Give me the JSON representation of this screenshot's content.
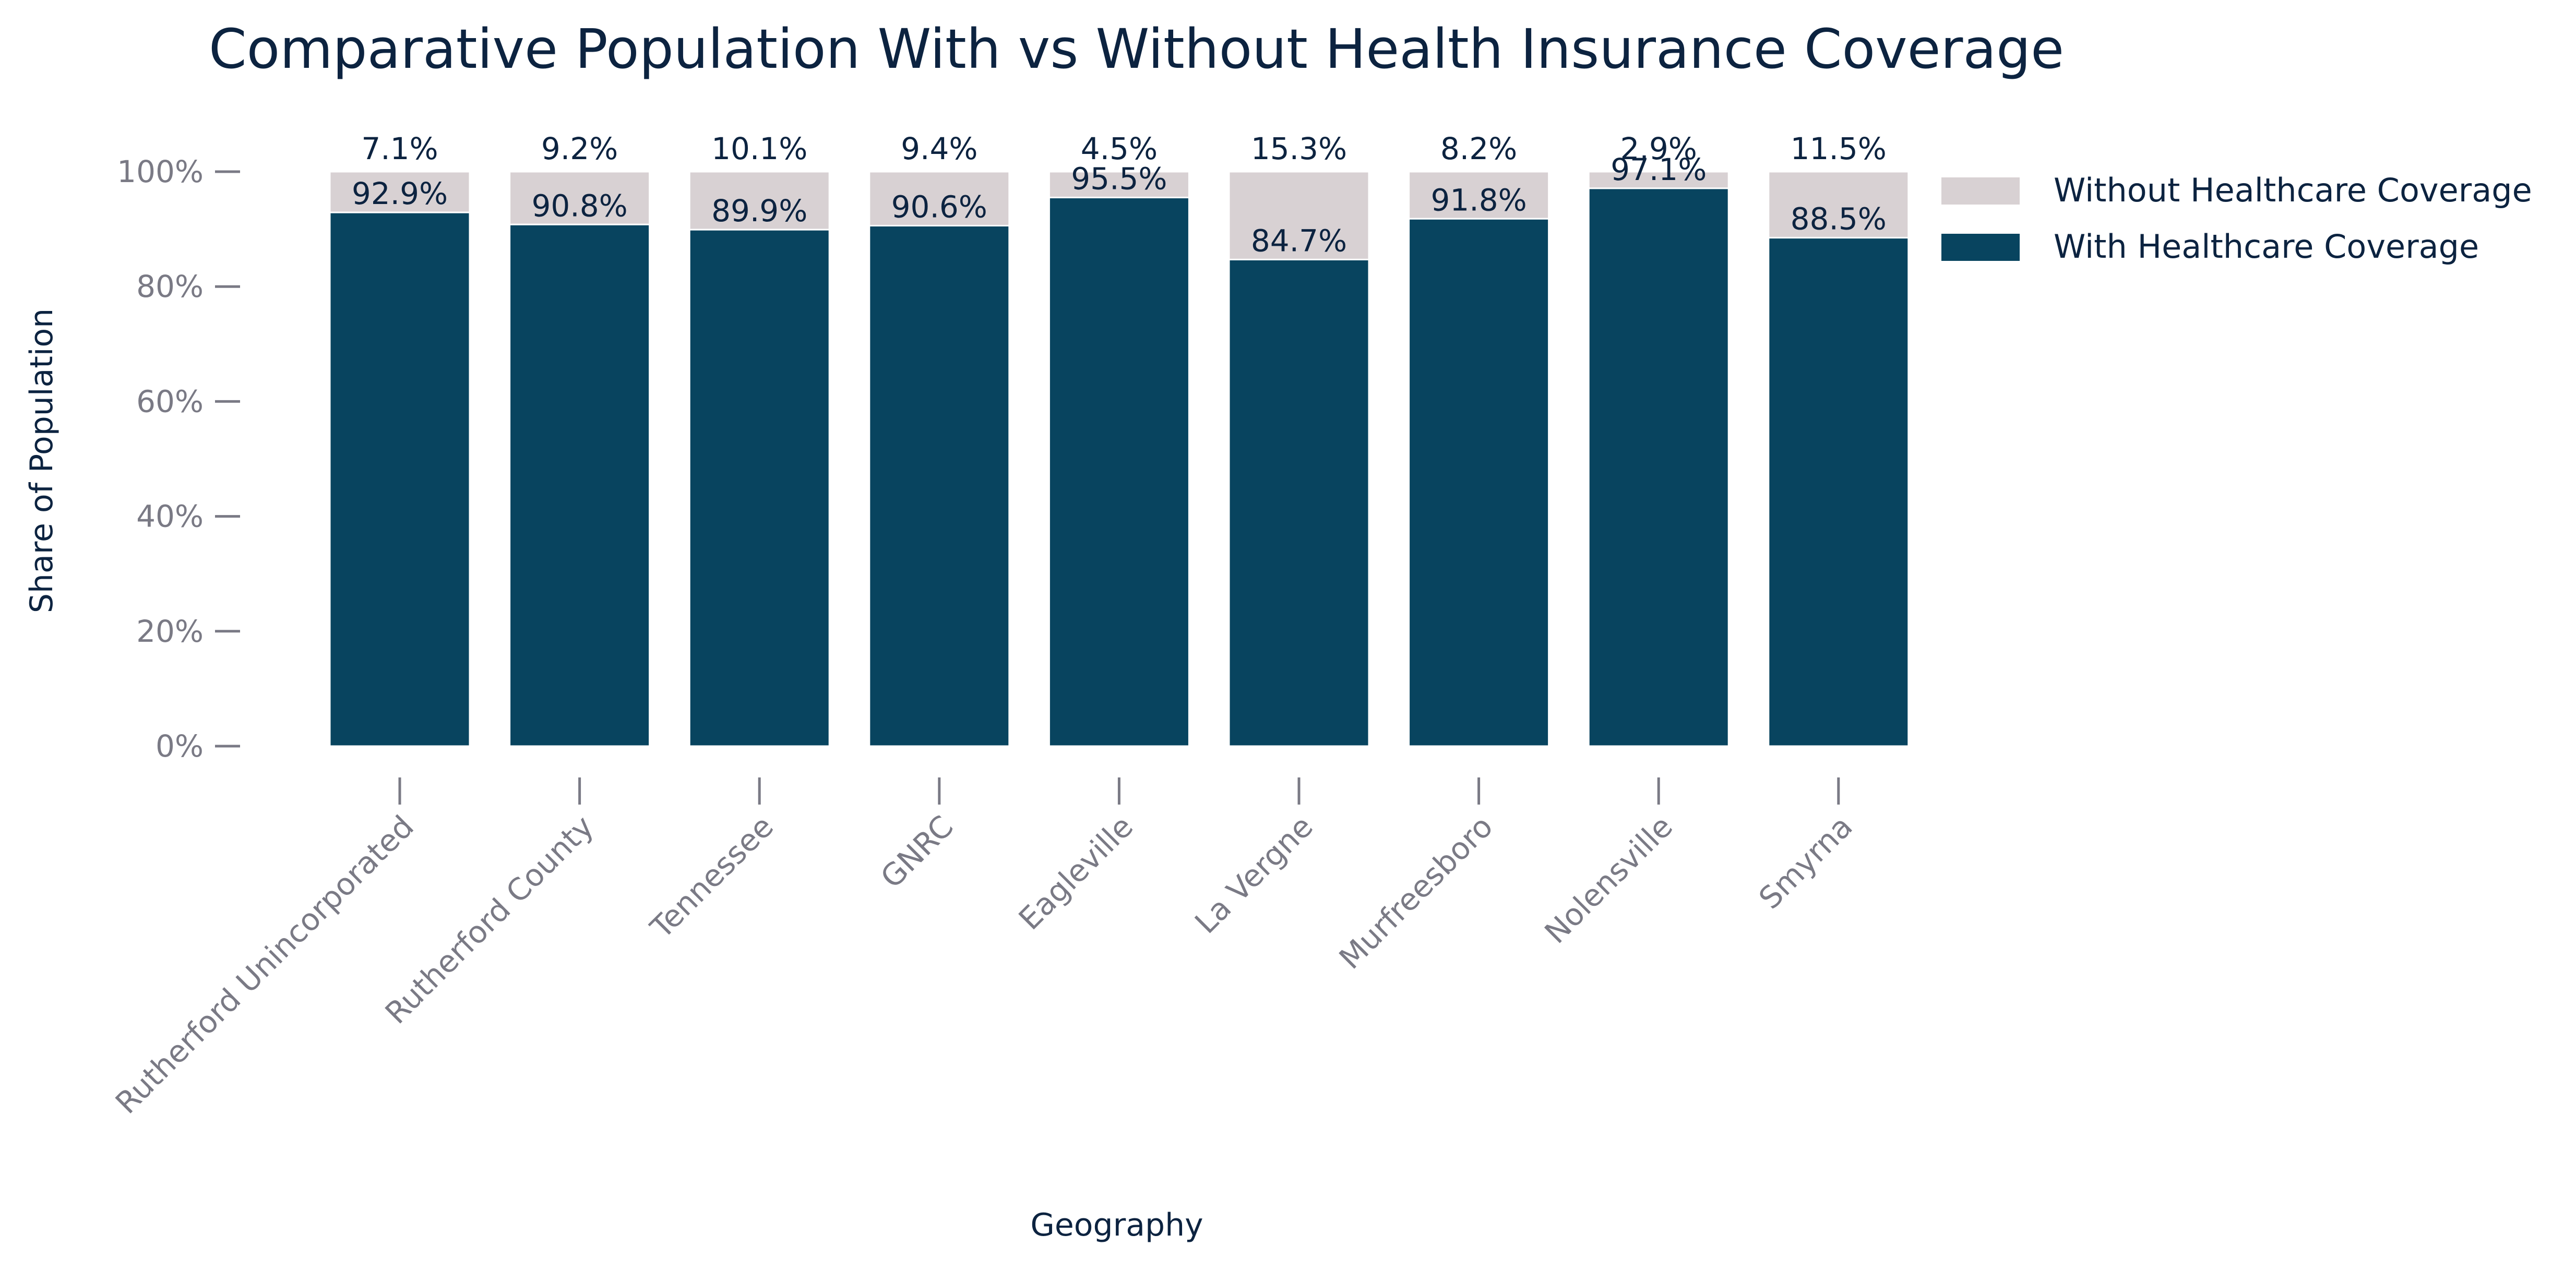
{
  "chart_data": {
    "type": "bar",
    "stacked": true,
    "title": "Comparative Population With vs Without Health Insurance Coverage",
    "xlabel": "Geography",
    "ylabel": "Share of Population",
    "ylim": [
      0,
      100
    ],
    "y_ticks": [
      "0%",
      "20%",
      "40%",
      "60%",
      "80%",
      "100%"
    ],
    "y_tick_values": [
      0,
      20,
      40,
      60,
      80,
      100
    ],
    "grid": false,
    "legend_position": "top-right",
    "categories": [
      "Rutherford Unincorporated",
      "Rutherford County",
      "Tennessee",
      "GNRC",
      "Eagleville",
      "La Vergne",
      "Murfreesboro",
      "Nolensville",
      "Smyrna"
    ],
    "series": [
      {
        "name": "With Healthcare Coverage",
        "color": "#08445f",
        "values": [
          92.9,
          90.8,
          89.9,
          90.6,
          95.5,
          84.7,
          91.8,
          97.1,
          88.5
        ],
        "labels": [
          "92.9%",
          "90.8%",
          "89.9%",
          "90.6%",
          "95.5%",
          "84.7%",
          "91.8%",
          "97.1%",
          "88.5%"
        ]
      },
      {
        "name": "Without Healthcare Coverage",
        "color": "#d8d1d3",
        "values": [
          7.1,
          9.2,
          10.1,
          9.4,
          4.5,
          15.3,
          8.2,
          2.9,
          11.5
        ],
        "labels": [
          "7.1%",
          "9.2%",
          "10.1%",
          "9.4%",
          "4.5%",
          "15.3%",
          "8.2%",
          "2.9%",
          "11.5%"
        ]
      }
    ],
    "legend_order": [
      "Without Healthcare Coverage",
      "With Healthcare Coverage"
    ]
  }
}
